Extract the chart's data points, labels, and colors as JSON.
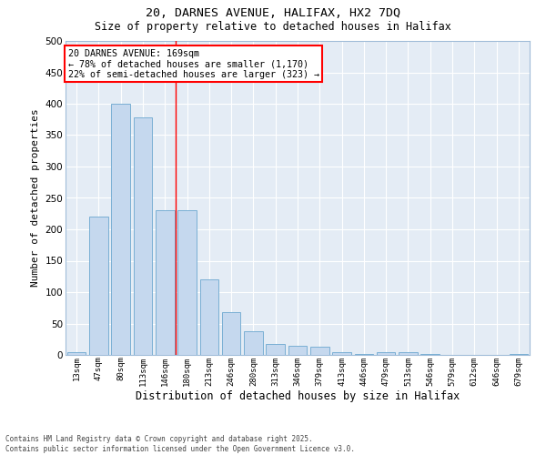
{
  "title1": "20, DARNES AVENUE, HALIFAX, HX2 7DQ",
  "title2": "Size of property relative to detached houses in Halifax",
  "xlabel": "Distribution of detached houses by size in Halifax",
  "ylabel": "Number of detached properties",
  "categories": [
    "13sqm",
    "47sqm",
    "80sqm",
    "113sqm",
    "146sqm",
    "180sqm",
    "213sqm",
    "246sqm",
    "280sqm",
    "313sqm",
    "346sqm",
    "379sqm",
    "413sqm",
    "446sqm",
    "479sqm",
    "513sqm",
    "546sqm",
    "579sqm",
    "612sqm",
    "646sqm",
    "679sqm"
  ],
  "values": [
    5,
    220,
    400,
    378,
    230,
    230,
    120,
    68,
    38,
    18,
    15,
    13,
    5,
    2,
    5,
    5,
    1,
    0,
    0,
    0,
    1
  ],
  "bar_color": "#c5d8ee",
  "bar_edge_color": "#7aafd4",
  "bg_color": "#e4ecf5",
  "red_line_x": 4.5,
  "annotation_title": "20 DARNES AVENUE: 169sqm",
  "annotation_line1": "← 78% of detached houses are smaller (1,170)",
  "annotation_line2": "22% of semi-detached houses are larger (323) →",
  "footer1": "Contains HM Land Registry data © Crown copyright and database right 2025.",
  "footer2": "Contains public sector information licensed under the Open Government Licence v3.0.",
  "ylim": [
    0,
    500
  ],
  "yticks": [
    0,
    50,
    100,
    150,
    200,
    250,
    300,
    350,
    400,
    450,
    500
  ]
}
